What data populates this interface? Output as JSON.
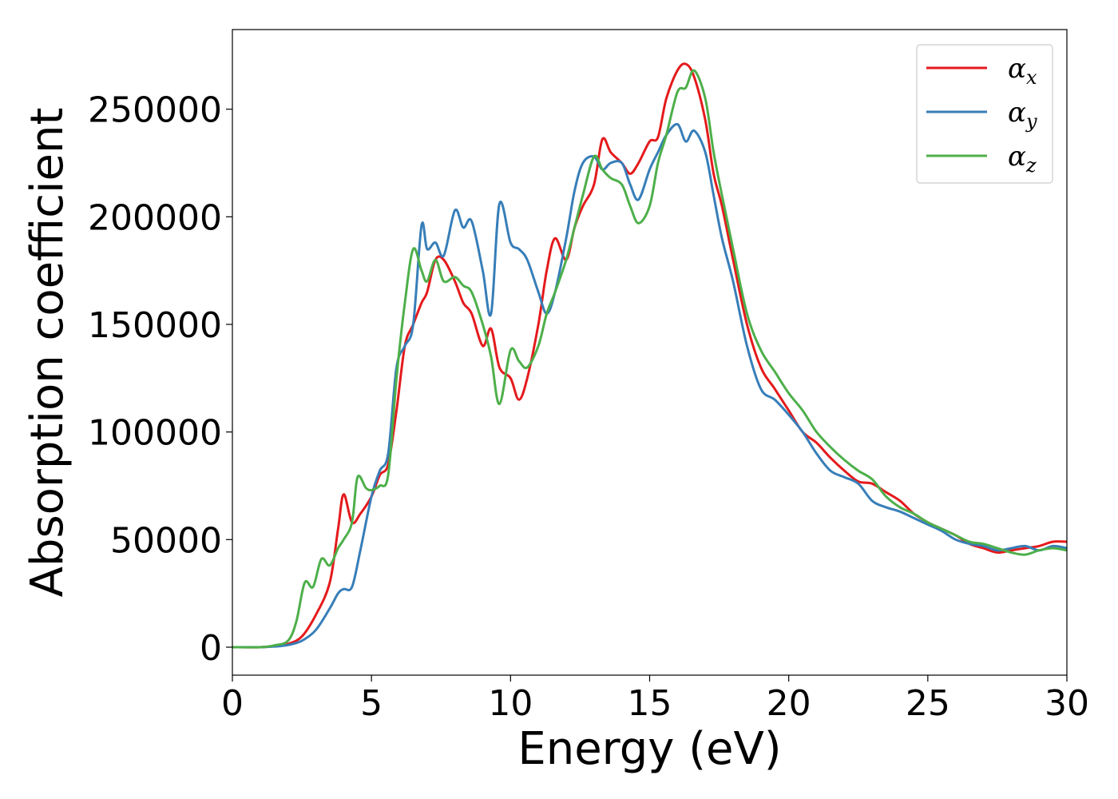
{
  "chart_data": {
    "type": "line",
    "title": "",
    "xlabel": "Energy (eV)",
    "ylabel": "Absorption coefficient",
    "xlim": [
      0,
      30
    ],
    "ylim": [
      -13000,
      287000
    ],
    "xticks": [
      0,
      5,
      10,
      15,
      20,
      25,
      30
    ],
    "yticks": [
      0,
      50000,
      100000,
      150000,
      200000,
      250000
    ],
    "grid": false,
    "legend_position": "top-right",
    "colors": {
      "alpha_x": "#e41a1c",
      "alpha_y": "#377eb8",
      "alpha_z": "#4daf4a"
    },
    "series": [
      {
        "name": "α_x",
        "symbol": "α",
        "subscript": "x",
        "color": "#e41a1c",
        "x": [
          0,
          1,
          1.5,
          2,
          2.5,
          3,
          3.5,
          3.8,
          4,
          4.3,
          4.6,
          5,
          5.3,
          5.6,
          5.9,
          6.2,
          6.5,
          6.8,
          7,
          7.3,
          7.6,
          8,
          8.3,
          8.6,
          9,
          9.3,
          9.6,
          10,
          10.3,
          10.6,
          11,
          11.3,
          11.6,
          12,
          12.3,
          12.6,
          13,
          13.3,
          13.6,
          14,
          14.3,
          14.6,
          15,
          15.3,
          15.6,
          16,
          16.3,
          16.6,
          17,
          17.3,
          17.6,
          18,
          18.5,
          19,
          19.5,
          20,
          20.5,
          21,
          21.5,
          22,
          22.5,
          23,
          23.5,
          24,
          24.5,
          25,
          25.5,
          26,
          26.5,
          27,
          27.5,
          28,
          28.5,
          29,
          29.5,
          30
        ],
        "y": [
          0,
          0,
          500,
          1500,
          5000,
          15000,
          30000,
          55000,
          71000,
          58000,
          62000,
          70000,
          80000,
          85000,
          110000,
          140000,
          150000,
          160000,
          165000,
          180000,
          180000,
          170000,
          160000,
          155000,
          140000,
          148000,
          130000,
          125000,
          115000,
          125000,
          150000,
          175000,
          190000,
          180000,
          195000,
          205000,
          215000,
          236000,
          230000,
          225000,
          220000,
          225000,
          235000,
          237000,
          255000,
          268000,
          271000,
          265000,
          245000,
          220000,
          205000,
          180000,
          150000,
          130000,
          120000,
          110000,
          100000,
          95000,
          88000,
          82000,
          77000,
          76000,
          72000,
          68000,
          62000,
          58000,
          55000,
          52000,
          48000,
          46000,
          44000,
          45000,
          46000,
          47000,
          49000,
          49000
        ]
      },
      {
        "name": "α_y",
        "symbol": "α",
        "subscript": "y",
        "color": "#377eb8",
        "x": [
          0,
          1,
          1.5,
          2,
          2.5,
          3,
          3.5,
          3.8,
          4,
          4.3,
          4.6,
          5,
          5.3,
          5.6,
          5.9,
          6.2,
          6.5,
          6.8,
          7,
          7.3,
          7.6,
          8,
          8.3,
          8.6,
          9,
          9.3,
          9.6,
          10,
          10.3,
          10.6,
          11,
          11.3,
          11.6,
          12,
          12.3,
          12.6,
          13,
          13.3,
          13.6,
          14,
          14.3,
          14.6,
          15,
          15.3,
          15.6,
          16,
          16.3,
          16.6,
          17,
          17.3,
          17.6,
          18,
          18.5,
          19,
          19.5,
          20,
          20.5,
          21,
          21.5,
          22,
          22.5,
          23,
          23.5,
          24,
          24.5,
          25,
          25.5,
          26,
          26.5,
          27,
          27.5,
          28,
          28.5,
          29,
          29.5,
          30
        ],
        "y": [
          0,
          0,
          300,
          1000,
          3000,
          8000,
          18000,
          25000,
          27000,
          28000,
          45000,
          70000,
          82000,
          90000,
          130000,
          140000,
          150000,
          196000,
          185000,
          188000,
          182000,
          203000,
          195000,
          198000,
          175000,
          155000,
          206000,
          188000,
          185000,
          180000,
          165000,
          155000,
          165000,
          190000,
          212000,
          225000,
          228000,
          222000,
          225000,
          225000,
          215000,
          208000,
          222000,
          230000,
          238000,
          243000,
          235000,
          240000,
          230000,
          210000,
          190000,
          170000,
          140000,
          120000,
          115000,
          108000,
          100000,
          90000,
          82000,
          79000,
          76000,
          68000,
          65000,
          63000,
          60000,
          57000,
          54000,
          50000,
          48000,
          47000,
          45000,
          46000,
          47000,
          45000,
          47000,
          46000
        ]
      },
      {
        "name": "α_z",
        "symbol": "α",
        "subscript": "z",
        "color": "#4daf4a",
        "x": [
          0,
          1,
          1.5,
          2,
          2.3,
          2.6,
          2.9,
          3.2,
          3.5,
          3.8,
          4,
          4.3,
          4.5,
          4.8,
          5,
          5.3,
          5.6,
          5.9,
          6.2,
          6.5,
          6.8,
          7,
          7.3,
          7.6,
          8,
          8.3,
          8.6,
          9,
          9.3,
          9.6,
          10,
          10.3,
          10.6,
          11,
          11.3,
          11.6,
          12,
          12.3,
          12.6,
          13,
          13.3,
          13.6,
          14,
          14.3,
          14.6,
          15,
          15.3,
          15.6,
          16,
          16.3,
          16.6,
          17,
          17.3,
          17.6,
          18,
          18.5,
          19,
          19.5,
          20,
          20.5,
          21,
          21.5,
          22,
          22.5,
          23,
          23.5,
          24,
          24.5,
          25,
          25.5,
          26,
          26.5,
          27,
          27.5,
          28,
          28.5,
          29,
          29.5,
          30
        ],
        "y": [
          0,
          0,
          800,
          3000,
          12000,
          30000,
          28000,
          41000,
          38000,
          46000,
          50000,
          58000,
          79000,
          74000,
          73000,
          75000,
          80000,
          125000,
          160000,
          185000,
          175000,
          170000,
          180000,
          170000,
          172000,
          168000,
          165000,
          150000,
          135000,
          113000,
          138000,
          133000,
          130000,
          140000,
          155000,
          165000,
          180000,
          195000,
          210000,
          228000,
          222000,
          218000,
          215000,
          205000,
          197000,
          205000,
          225000,
          238000,
          258000,
          260000,
          268000,
          255000,
          230000,
          210000,
          185000,
          155000,
          138000,
          128000,
          118000,
          110000,
          100000,
          93000,
          87000,
          82000,
          78000,
          70000,
          65000,
          62000,
          58000,
          55000,
          52000,
          49000,
          48000,
          46000,
          44000,
          43000,
          45000,
          46000,
          45000
        ]
      }
    ]
  }
}
